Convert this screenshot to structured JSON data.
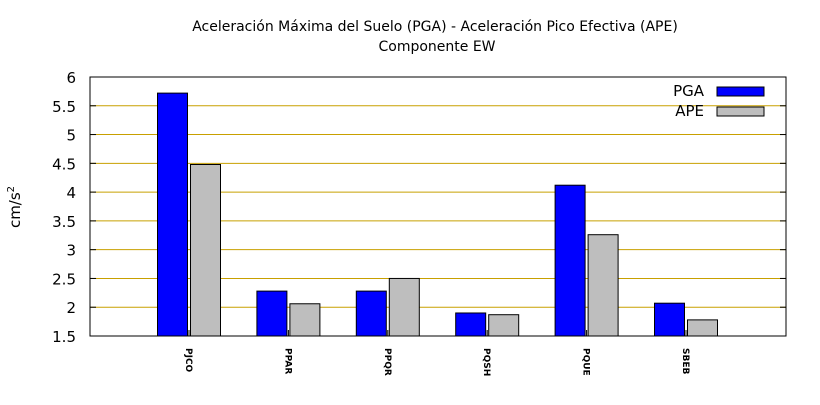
{
  "chart_data": {
    "type": "bar",
    "title": "Aceleración Máxima del Suelo (PGA) -  Aceleración Pico Efectiva (APE)",
    "subtitle": "Componente EW",
    "xlabel": "",
    "ylabel_base": "cm/s",
    "ylabel_exp": "2",
    "ylim": [
      1.5,
      6
    ],
    "yticks": [
      "1.5",
      "2",
      "2.5",
      "3",
      "3.5",
      "4",
      "4.5",
      "5",
      "5.5",
      "6"
    ],
    "grid": true,
    "legend_position": "top-right",
    "categories": [
      "PJCO",
      "PPAR",
      "PPQR",
      "PQSH",
      "PQUE",
      "SBEB"
    ],
    "series": [
      {
        "name": "PGA",
        "color": "#0000ff",
        "values": [
          5.72,
          2.28,
          2.28,
          1.9,
          4.12,
          2.07
        ]
      },
      {
        "name": "APE",
        "color": "#bebebe",
        "values": [
          4.48,
          2.06,
          2.5,
          1.87,
          3.26,
          1.78
        ]
      }
    ]
  },
  "colors": {
    "grid": "#c8a000",
    "axis": "#000000"
  }
}
